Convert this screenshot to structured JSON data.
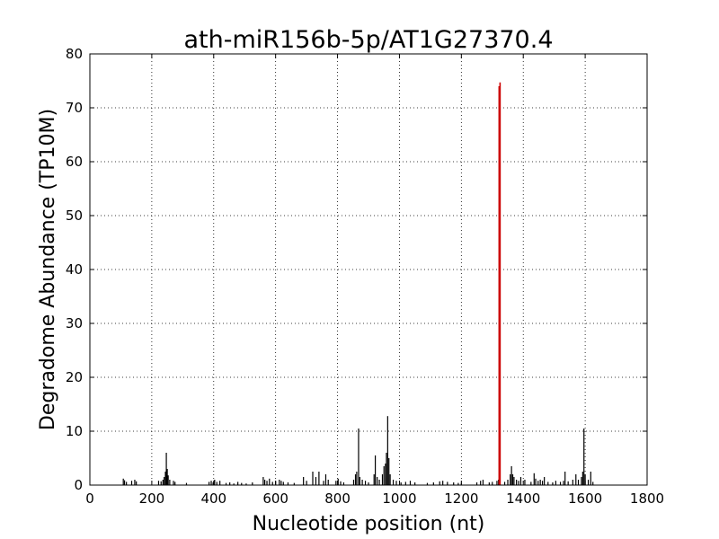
{
  "chart_data": {
    "type": "bar",
    "title": "ath-miR156b-5p/AT1G27370.4",
    "xlabel": "Nucleotide position (nt)",
    "ylabel": "Degradome Abundance (TP10M)",
    "xlim": [
      0,
      1800
    ],
    "ylim": [
      0,
      80
    ],
    "x_ticks": [
      0,
      200,
      400,
      600,
      800,
      1000,
      1200,
      1400,
      1600,
      1800
    ],
    "y_ticks": [
      0,
      10,
      20,
      30,
      40,
      50,
      60,
      70,
      80
    ],
    "grid": true,
    "grid_style": "dotted",
    "colors": {
      "background": "#ffffff",
      "axes": "#000000",
      "series": "#000000",
      "highlight": "#cc0000"
    },
    "series": [
      {
        "x": [
          108,
          112,
          118,
          135,
          145,
          150,
          222,
          230,
          236,
          240,
          244,
          247,
          250,
          253,
          258,
          270,
          275,
          312,
          385,
          392,
          398,
          403,
          410,
          420,
          440,
          452,
          465,
          478,
          490,
          505,
          525,
          560,
          565,
          572,
          580,
          590,
          600,
          612,
          618,
          625,
          640,
          660,
          690,
          700,
          720,
          730,
          740,
          755,
          762,
          770,
          795,
          802,
          810,
          820,
          852,
          858,
          862,
          868,
          872,
          880,
          890,
          900,
          918,
          922,
          928,
          935,
          945,
          950,
          955,
          958,
          962,
          966,
          970,
          980,
          990,
          1005,
          1020,
          1035,
          1050,
          1090,
          1110,
          1130,
          1140,
          1155,
          1175,
          1190,
          1200,
          1250,
          1262,
          1270,
          1290,
          1300,
          1315,
          1320,
          1340,
          1350,
          1358,
          1362,
          1366,
          1370,
          1378,
          1385,
          1392,
          1405,
          1425,
          1435,
          1440,
          1448,
          1455,
          1462,
          1468,
          1480,
          1495,
          1505,
          1520,
          1530,
          1535,
          1545,
          1560,
          1570,
          1578,
          1588,
          1592,
          1596,
          1600,
          1610,
          1618,
          1625
        ],
        "values": [
          1.2,
          0.9,
          0.6,
          0.8,
          1.0,
          0.7,
          0.8,
          0.7,
          1.0,
          1.5,
          2.5,
          6.0,
          3.0,
          1.8,
          1.0,
          0.8,
          0.6,
          0.4,
          0.6,
          0.8,
          0.5,
          1.0,
          0.6,
          0.8,
          0.4,
          0.5,
          0.3,
          0.6,
          0.4,
          0.3,
          0.5,
          1.5,
          1.0,
          0.8,
          1.2,
          0.6,
          0.7,
          1.0,
          0.8,
          0.6,
          0.5,
          0.4,
          1.5,
          0.8,
          2.5,
          1.5,
          2.5,
          0.8,
          2.0,
          1.0,
          0.8,
          1.2,
          0.7,
          0.5,
          1.0,
          2.0,
          2.5,
          10.5,
          1.5,
          1.0,
          0.8,
          0.5,
          2.0,
          5.5,
          1.5,
          1.0,
          2.0,
          3.5,
          4.0,
          6.0,
          12.8,
          5.0,
          2.0,
          1.0,
          0.8,
          0.5,
          0.6,
          0.8,
          0.5,
          0.4,
          0.5,
          0.7,
          0.8,
          0.6,
          0.5,
          0.4,
          0.4,
          0.5,
          0.8,
          1.0,
          0.5,
          0.6,
          0.8,
          1.0,
          0.6,
          1.0,
          2.0,
          3.5,
          2.0,
          1.5,
          1.0,
          0.8,
          1.5,
          1.0,
          0.6,
          2.2,
          1.2,
          0.8,
          1.0,
          0.8,
          1.5,
          0.6,
          0.5,
          0.8,
          0.6,
          0.8,
          2.5,
          0.7,
          1.0,
          2.0,
          1.0,
          1.5,
          2.5,
          10.5,
          2.0,
          1.0,
          2.5,
          0.6
        ]
      },
      {
        "x": [
          1322,
          1325
        ],
        "values": [
          74.0,
          74.7
        ],
        "color": "#cc0000"
      }
    ]
  }
}
